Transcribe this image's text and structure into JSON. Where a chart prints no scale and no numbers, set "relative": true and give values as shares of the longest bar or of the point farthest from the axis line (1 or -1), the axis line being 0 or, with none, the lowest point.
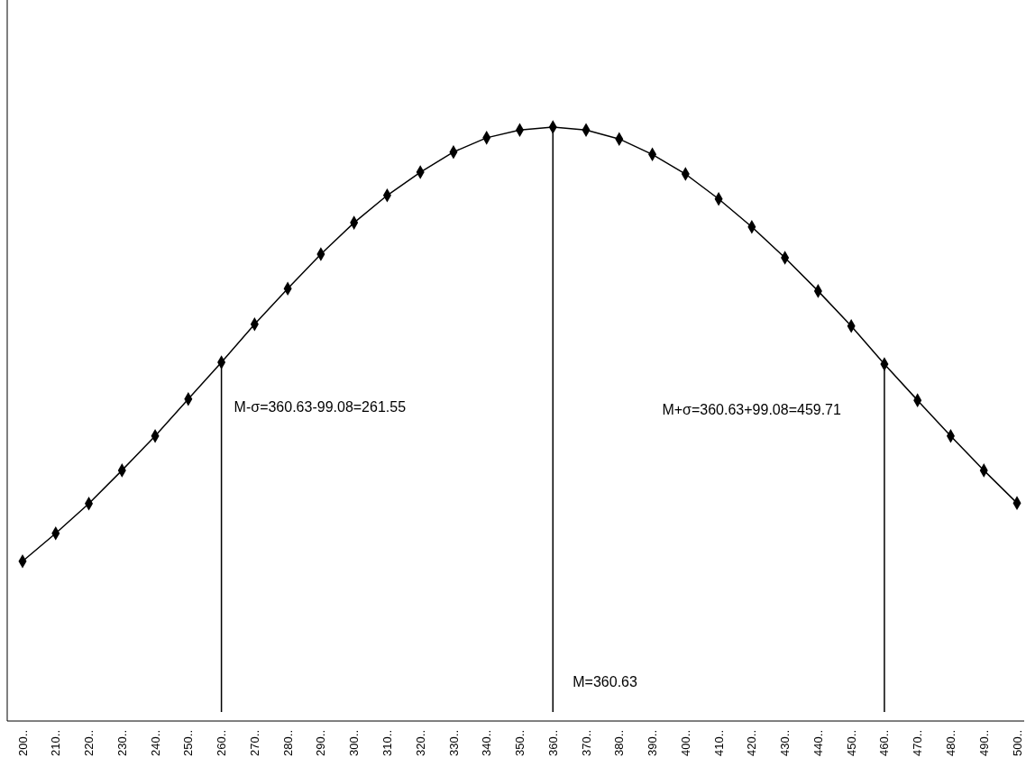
{
  "chart_data": {
    "type": "line",
    "relative": true,
    "marker": "diamond",
    "line_style": "solid",
    "categories": [
      "200..",
      "210..",
      "220..",
      "230..",
      "240..",
      "250..",
      "260..",
      "270..",
      "280..",
      "290..",
      "300..",
      "310..",
      "320..",
      "330..",
      "340..",
      "350..",
      "360..",
      "370..",
      "380..",
      "390..",
      "400..",
      "410..",
      "420..",
      "430..",
      "440..",
      "450..",
      "460..",
      "470..",
      "480..",
      "490..",
      "500.."
    ],
    "series": [
      {
        "color": "#000000",
        "values": [
          0.269,
          0.316,
          0.366,
          0.422,
          0.48,
          0.542,
          0.604,
          0.668,
          0.728,
          0.786,
          0.839,
          0.885,
          0.924,
          0.958,
          0.982,
          0.995,
          1,
          0.995,
          0.98,
          0.954,
          0.921,
          0.879,
          0.832,
          0.78,
          0.724,
          0.665,
          0.601,
          0.54,
          0.48,
          0.422,
          0.367
        ]
      }
    ],
    "ref_lines": [
      {
        "axis": "x",
        "value": "260..",
        "label": "M-σ=360.63-99.08=261.55",
        "color": "#000000"
      },
      {
        "axis": "x",
        "value": "360..",
        "label": "M=360.63",
        "color": "#000000"
      },
      {
        "axis": "x",
        "value": "460..",
        "label": "M+σ=360.63+99.08=459.71",
        "color": "#000000"
      }
    ]
  }
}
